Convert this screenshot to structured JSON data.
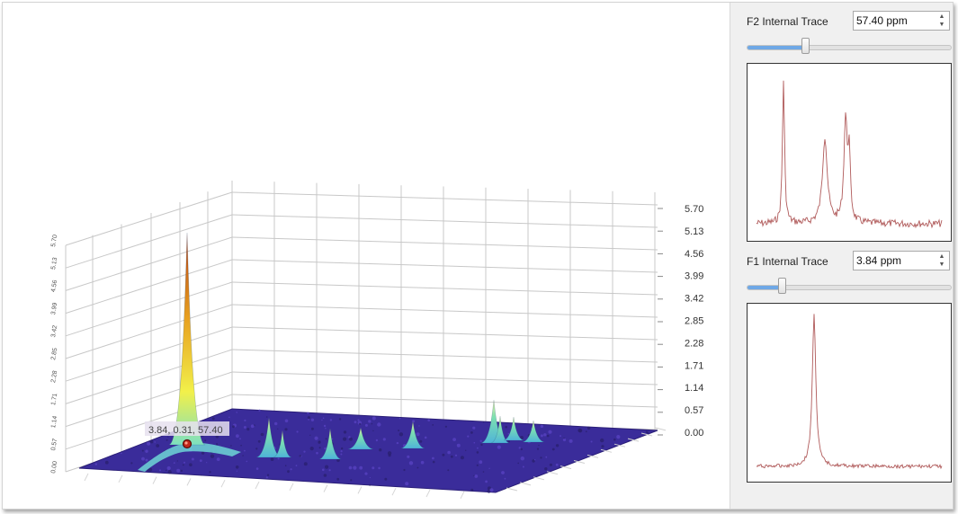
{
  "plot3d": {
    "z_ticks_right": [
      "5.70",
      "5.13",
      "4.56",
      "3.99",
      "3.42",
      "2.85",
      "2.28",
      "1.71",
      "1.14",
      "0.57",
      "0.00"
    ],
    "z_ticks_left": [
      "5.70",
      "5.13",
      "4.56",
      "3.99",
      "3.42",
      "2.85",
      "2.28",
      "1.71",
      "1.14",
      "0.57",
      "0.00"
    ],
    "cursor_label": "3.84, 0.31, 57.40",
    "colors": {
      "floor": "#3a2c9a",
      "grid": "#c8c8c8",
      "peak_main": "#e8a020",
      "peak_tip": "#b33c10",
      "peak_small": "#7de0b0"
    }
  },
  "side_panel": {
    "f2": {
      "label": "F2 Internal Trace",
      "value": "57.40 ppm",
      "slider_fraction": 0.28,
      "trace_color": "#b05a5a"
    },
    "f1": {
      "label": "F1 Internal Trace",
      "value": "3.84 ppm",
      "slider_fraction": 0.16,
      "trace_color": "#b05a5a"
    },
    "spin_icons": [
      "spin-up-icon",
      "spin-down-icon"
    ]
  }
}
